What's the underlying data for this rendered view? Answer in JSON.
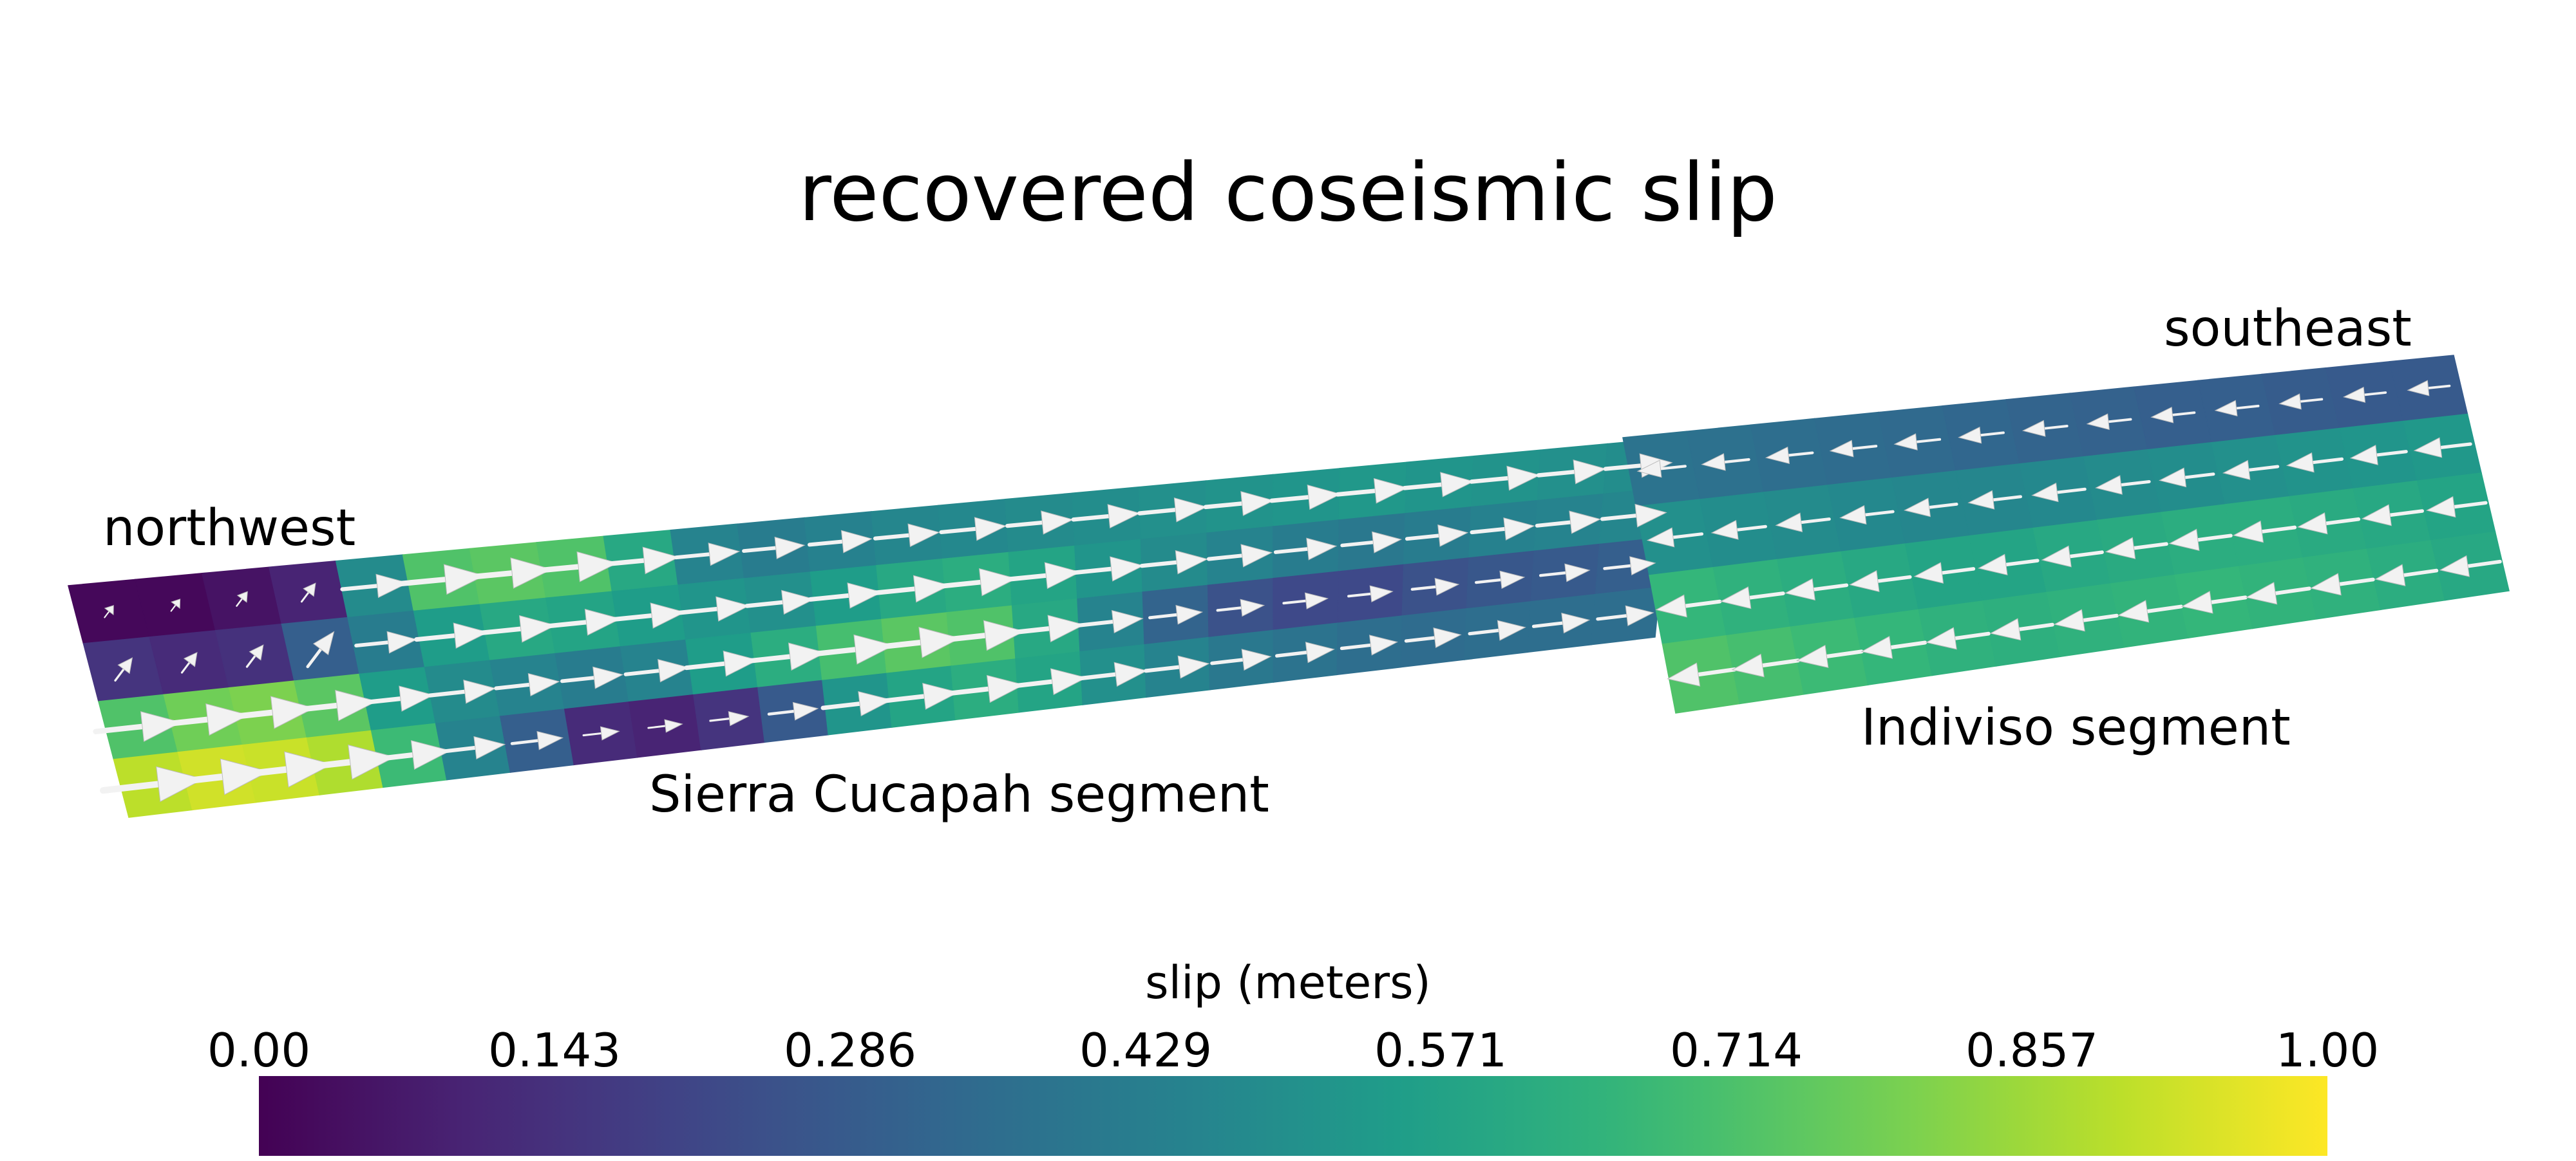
{
  "title": "recovered coseismic slip",
  "labels": {
    "northwest": "northwest",
    "southeast": "southeast",
    "segment_1": "Sierra Cucapah segment",
    "segment_2": "Indiviso segment"
  },
  "colorbar": {
    "label": "slip (meters)",
    "colormap": "viridis",
    "ticks": [
      "0.00",
      "0.143",
      "0.286",
      "0.429",
      "0.571",
      "0.714",
      "0.857",
      "1.00"
    ],
    "range": [
      0.0,
      1.0
    ]
  },
  "colors": {
    "viridis_stops": [
      "#440154",
      "#482878",
      "#3e4a89",
      "#31688e",
      "#26828e",
      "#1f9e89",
      "#35b779",
      "#6ece58",
      "#b5de2b",
      "#fde725"
    ],
    "arrow": "#f2f2f2"
  },
  "slip_patches": {
    "sierra_cucapah": [
      [
        0.02,
        0.02,
        0.05,
        0.1,
        0.48,
        0.72,
        0.74,
        0.72,
        0.6,
        0.45,
        0.42,
        0.44,
        0.46,
        0.47,
        0.48,
        0.49,
        0.5,
        0.51,
        0.52,
        0.53,
        0.52,
        0.51,
        0.5,
        0.49
      ],
      [
        0.15,
        0.12,
        0.14,
        0.3,
        0.42,
        0.55,
        0.6,
        0.58,
        0.55,
        0.52,
        0.5,
        0.55,
        0.6,
        0.62,
        0.58,
        0.52,
        0.48,
        0.45,
        0.42,
        0.4,
        0.42,
        0.44,
        0.45,
        0.46
      ],
      [
        0.72,
        0.78,
        0.8,
        0.74,
        0.55,
        0.48,
        0.45,
        0.42,
        0.45,
        0.55,
        0.62,
        0.7,
        0.74,
        0.72,
        0.6,
        0.45,
        0.32,
        0.25,
        0.22,
        0.22,
        0.25,
        0.27,
        0.28,
        0.3
      ],
      [
        0.9,
        0.93,
        0.92,
        0.88,
        0.68,
        0.45,
        0.3,
        0.12,
        0.1,
        0.15,
        0.28,
        0.52,
        0.58,
        0.62,
        0.58,
        0.5,
        0.45,
        0.4,
        0.38,
        0.36,
        0.35,
        0.36,
        0.36,
        0.36
      ]
    ],
    "indiviso": [
      [
        0.38,
        0.37,
        0.36,
        0.35,
        0.34,
        0.33,
        0.32,
        0.31,
        0.3,
        0.3,
        0.29,
        0.28,
        0.28
      ],
      [
        0.5,
        0.49,
        0.48,
        0.47,
        0.46,
        0.46,
        0.47,
        0.48,
        0.49,
        0.5,
        0.51,
        0.52,
        0.53
      ],
      [
        0.66,
        0.64,
        0.62,
        0.6,
        0.58,
        0.58,
        0.6,
        0.61,
        0.62,
        0.62,
        0.61,
        0.6,
        0.58
      ],
      [
        0.72,
        0.7,
        0.68,
        0.66,
        0.64,
        0.63,
        0.64,
        0.65,
        0.66,
        0.65,
        0.64,
        0.62,
        0.6
      ]
    ]
  }
}
